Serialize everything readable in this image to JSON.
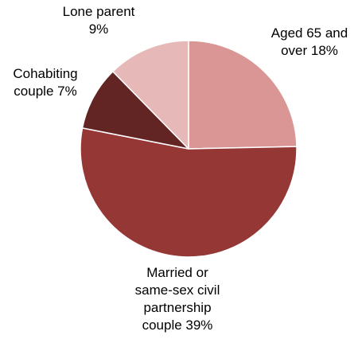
{
  "chart_data": {
    "type": "pie",
    "start_angle_deg": 0,
    "direction": "clockwise",
    "slices": [
      {
        "label_lines": [
          "Aged 65 and",
          "over 18%"
        ],
        "value": 18,
        "color": "#d99694"
      },
      {
        "label_lines": [
          "Married or",
          "same-sex civil",
          "partnership",
          "couple 39%"
        ],
        "value": 39,
        "color": "#953735"
      },
      {
        "label_lines": [
          "Cohabiting",
          "couple 7%"
        ],
        "value": 7,
        "color": "#632523"
      },
      {
        "label_lines": [
          "Lone parent",
          "9%"
        ],
        "value": 9,
        "color": "#e6b9b8"
      }
    ],
    "slice_border_color": "#ffffff",
    "legend": "none"
  }
}
